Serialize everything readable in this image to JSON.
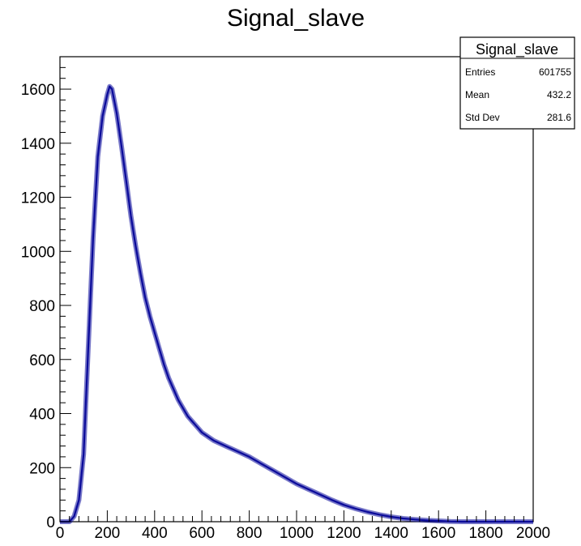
{
  "chart_data": {
    "type": "area",
    "title": "Signal_slave",
    "xlabel": "",
    "ylabel": "",
    "xlim": [
      0,
      2000
    ],
    "ylim": [
      0,
      1720
    ],
    "x_ticks": [
      0,
      200,
      400,
      600,
      800,
      1000,
      1200,
      1400,
      1600,
      1800,
      2000
    ],
    "y_ticks": [
      0,
      200,
      400,
      600,
      800,
      1000,
      1200,
      1400,
      1600
    ],
    "grid": false,
    "line_color": "#0a0a9a",
    "stats_box": {
      "title": "Signal_slave",
      "rows": [
        {
          "label": "Entries",
          "value": "601755"
        },
        {
          "label": "Mean",
          "value": "432.2"
        },
        {
          "label": "Std Dev",
          "value": "281.6"
        }
      ]
    },
    "series": [
      {
        "x": [
          0,
          40,
          60,
          80,
          100,
          120,
          140,
          160,
          180,
          200,
          210,
          220,
          240,
          260,
          280,
          300,
          320,
          340,
          360,
          380,
          400,
          420,
          440,
          460,
          480,
          500,
          520,
          540,
          560,
          580,
          600,
          650,
          700,
          750,
          800,
          850,
          900,
          950,
          1000,
          1050,
          1100,
          1150,
          1200,
          1250,
          1300,
          1350,
          1400,
          1450,
          1500,
          1550,
          1600,
          1650,
          1700,
          1750,
          1800,
          2000
        ],
        "y": [
          0,
          0,
          20,
          80,
          250,
          650,
          1050,
          1350,
          1500,
          1580,
          1610,
          1600,
          1510,
          1390,
          1260,
          1130,
          1020,
          920,
          830,
          760,
          700,
          640,
          580,
          530,
          490,
          450,
          420,
          390,
          370,
          350,
          330,
          300,
          280,
          260,
          240,
          215,
          190,
          165,
          140,
          120,
          100,
          80,
          62,
          48,
          36,
          26,
          18,
          12,
          8,
          5,
          3,
          1,
          0,
          0,
          0,
          0
        ]
      }
    ]
  }
}
